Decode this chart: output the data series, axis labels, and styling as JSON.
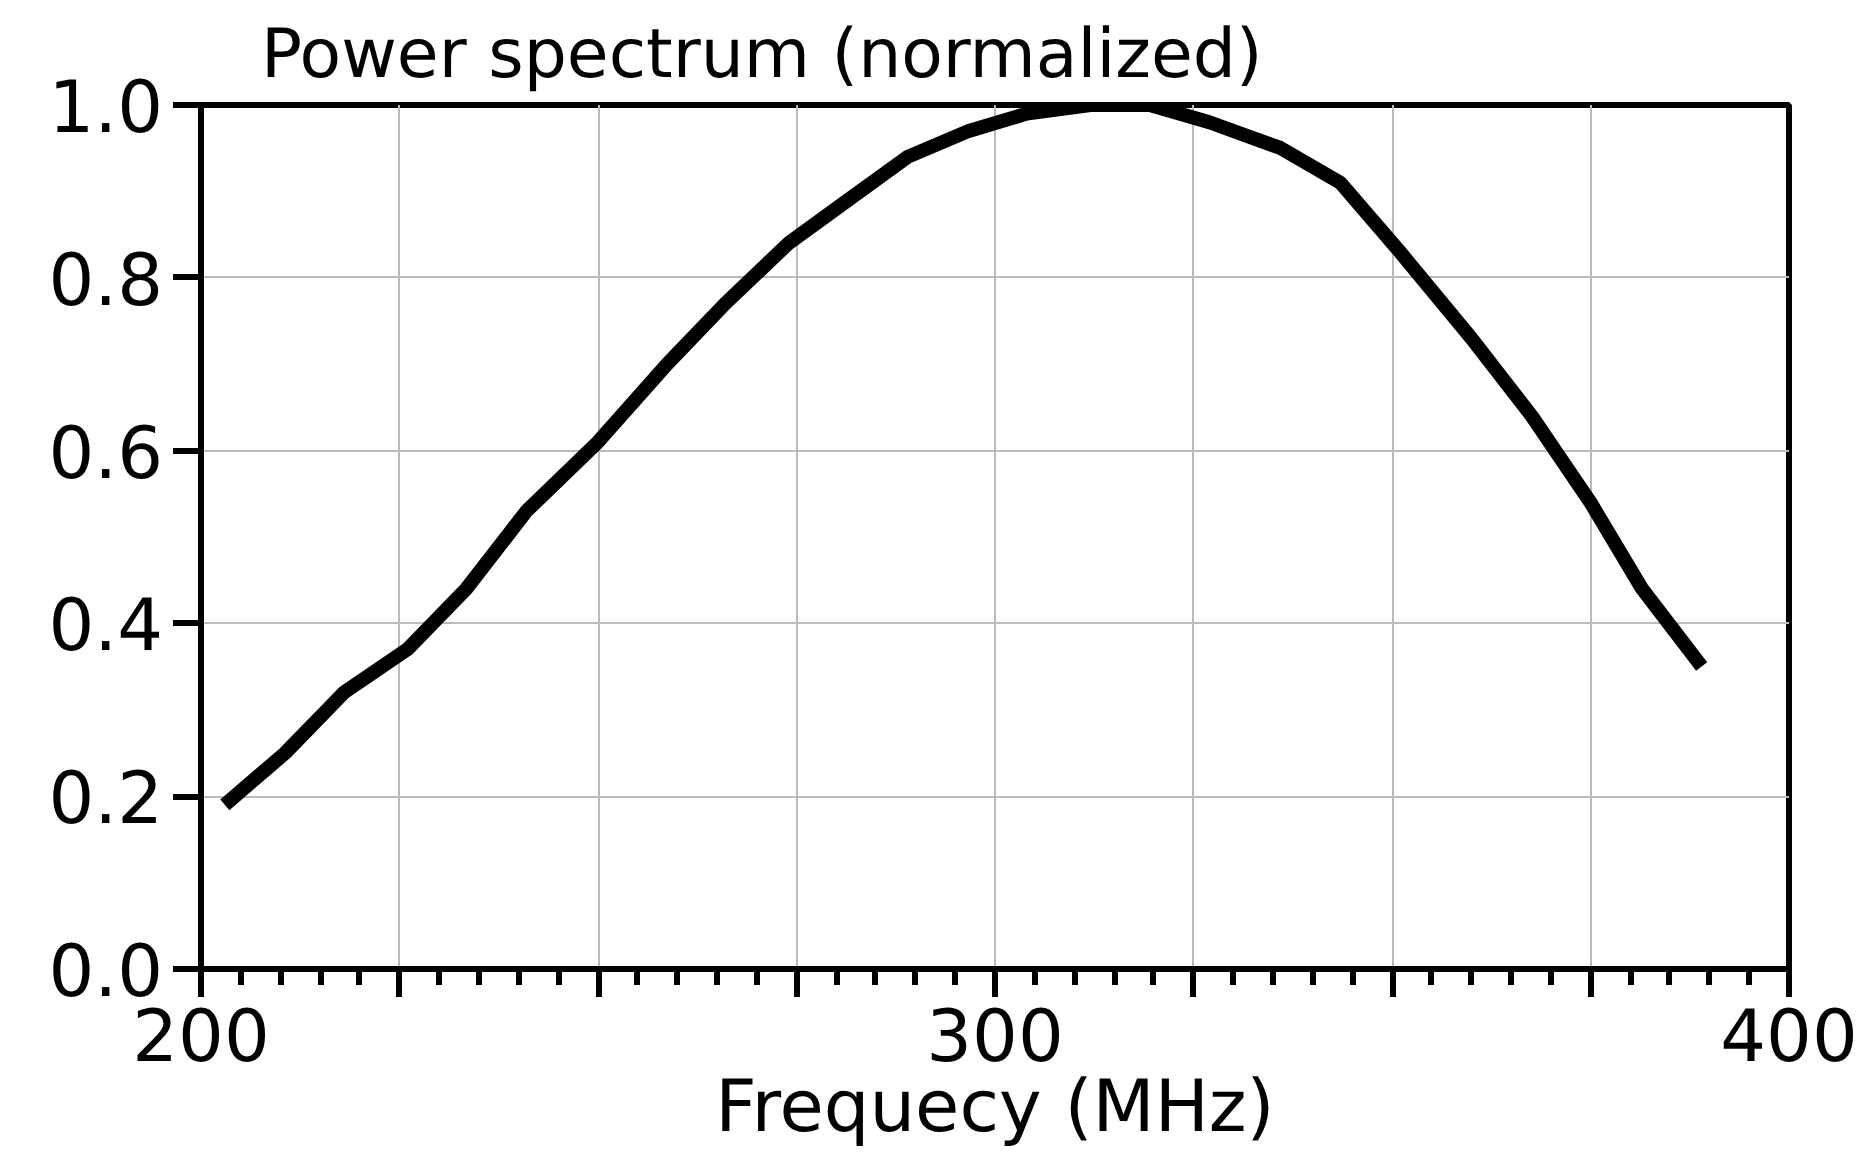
{
  "chart_data": {
    "type": "line",
    "title": "Power spectrum (normalized)",
    "xlabel": "Frequecy (MHz)",
    "x": [
      203,
      210.6,
      218,
      226,
      233.4,
      241,
      250,
      258.7,
      266,
      274,
      281.5,
      289,
      296.7,
      304,
      312,
      319.5,
      327,
      336,
      343.5,
      351,
      360,
      367.6,
      375,
      381.5,
      389
    ],
    "series": [
      {
        "color": "#000000",
        "values": [
          0.19,
          0.25,
          0.32,
          0.37,
          0.44,
          0.53,
          0.61,
          0.7,
          0.77,
          0.84,
          0.89,
          0.94,
          0.97,
          0.99,
          1.0,
          1.0,
          0.98,
          0.95,
          0.91,
          0.83,
          0.73,
          0.64,
          0.54,
          0.44,
          0.35
        ]
      }
    ],
    "xlim": [
      200,
      400
    ],
    "ylim": [
      0,
      1
    ],
    "xticks": [
      200,
      {
        "value": 225,
        "label": null
      },
      {
        "value": 250,
        "label": null
      },
      {
        "value": 275,
        "label": null
      },
      300,
      {
        "value": 325,
        "label": null
      },
      {
        "value": 350,
        "label": null
      },
      {
        "value": 375,
        "label": null
      },
      400
    ],
    "yticks": [
      {
        "value": 0,
        "label": "0.0"
      },
      {
        "value": 0.2,
        "label": "0.2"
      },
      {
        "value": 0.4,
        "label": "0.4"
      },
      {
        "value": 0.6,
        "label": "0.6"
      },
      {
        "value": 0.8,
        "label": "0.8"
      },
      {
        "value": 1,
        "label": "1.0"
      }
    ],
    "grid": true,
    "marker": "none",
    "line_style": "solid"
  }
}
